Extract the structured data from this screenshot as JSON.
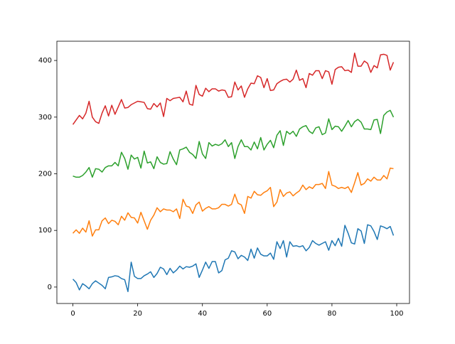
{
  "chart_data": {
    "type": "line",
    "x": [
      0,
      1,
      2,
      3,
      4,
      5,
      6,
      7,
      8,
      9,
      10,
      11,
      12,
      13,
      14,
      15,
      16,
      17,
      18,
      19,
      20,
      21,
      22,
      23,
      24,
      25,
      26,
      27,
      28,
      29,
      30,
      31,
      32,
      33,
      34,
      35,
      36,
      37,
      38,
      39,
      40,
      41,
      42,
      43,
      44,
      45,
      46,
      47,
      48,
      49,
      50,
      51,
      52,
      53,
      54,
      55,
      56,
      57,
      58,
      59,
      60,
      61,
      62,
      63,
      64,
      65,
      66,
      67,
      68,
      69,
      70,
      71,
      72,
      73,
      74,
      75,
      76,
      77,
      78,
      79,
      80,
      81,
      82,
      83,
      84,
      85,
      86,
      87,
      88,
      89,
      90,
      91,
      92,
      93,
      94,
      95,
      96,
      97,
      98,
      99
    ],
    "series": [
      {
        "color": "#1f77b4",
        "values": [
          14,
          8,
          -5,
          6,
          2,
          -3,
          6,
          11,
          7,
          3,
          -3,
          17,
          18,
          20,
          19,
          15,
          13,
          -8,
          44,
          19,
          15,
          15,
          20,
          23,
          27,
          17,
          24,
          35,
          32,
          22,
          33,
          25,
          30,
          37,
          32,
          36,
          35,
          37,
          41,
          17,
          30,
          44,
          33,
          45,
          45,
          25,
          29,
          48,
          51,
          64,
          62,
          50,
          56,
          53,
          47,
          67,
          51,
          69,
          58,
          55,
          55,
          60,
          49,
          80,
          68,
          82,
          53,
          80,
          72,
          73,
          71,
          73,
          64,
          70,
          82,
          77,
          74,
          77,
          80,
          65,
          82,
          73,
          86,
          72,
          109,
          95,
          78,
          76,
          103,
          99,
          77,
          110,
          108,
          98,
          84,
          108,
          106,
          103,
          107,
          91
        ]
      },
      {
        "color": "#ff7f0e",
        "values": [
          95,
          101,
          95,
          104,
          97,
          117,
          90,
          101,
          101,
          117,
          122,
          112,
          118,
          116,
          110,
          125,
          118,
          131,
          123,
          122,
          113,
          132,
          117,
          102,
          118,
          127,
          140,
          133,
          138,
          136,
          136,
          133,
          138,
          121,
          155,
          143,
          141,
          130,
          145,
          150,
          134,
          139,
          142,
          138,
          138,
          140,
          146,
          146,
          143,
          146,
          164,
          148,
          145,
          130,
          160,
          157,
          169,
          163,
          162,
          167,
          170,
          176,
          142,
          150,
          172,
          160,
          166,
          168,
          161,
          166,
          170,
          180,
          172,
          177,
          174,
          181,
          181,
          183,
          174,
          204,
          180,
          178,
          174,
          176,
          174,
          177,
          167,
          184,
          202,
          180,
          183,
          191,
          187,
          194,
          189,
          189,
          197,
          191,
          210,
          209
        ]
      },
      {
        "color": "#2ca02c",
        "values": [
          196,
          194,
          194,
          197,
          203,
          211,
          194,
          209,
          208,
          203,
          211,
          214,
          214,
          220,
          214,
          238,
          227,
          208,
          233,
          226,
          229,
          210,
          240,
          219,
          221,
          209,
          230,
          220,
          217,
          218,
          239,
          226,
          216,
          242,
          244,
          247,
          238,
          234,
          227,
          257,
          235,
          227,
          255,
          249,
          252,
          250,
          253,
          260,
          248,
          255,
          227,
          248,
          260,
          248,
          248,
          242,
          256,
          244,
          264,
          242,
          252,
          259,
          246,
          268,
          276,
          250,
          275,
          270,
          275,
          266,
          279,
          283,
          285,
          275,
          271,
          281,
          283,
          269,
          272,
          297,
          278,
          284,
          283,
          275,
          284,
          294,
          283,
          292,
          296,
          291,
          279,
          279,
          278,
          295,
          296,
          271,
          303,
          309,
          312,
          300
        ]
      },
      {
        "color": "#d62728",
        "values": [
          287,
          295,
          303,
          297,
          307,
          328,
          300,
          292,
          289,
          307,
          320,
          302,
          321,
          305,
          318,
          331,
          316,
          317,
          322,
          325,
          328,
          327,
          326,
          315,
          314,
          324,
          318,
          325,
          301,
          333,
          329,
          333,
          334,
          335,
          327,
          346,
          323,
          321,
          356,
          340,
          337,
          351,
          345,
          350,
          350,
          346,
          348,
          347,
          335,
          336,
          362,
          348,
          355,
          335,
          350,
          360,
          359,
          373,
          370,
          352,
          368,
          347,
          348,
          359,
          363,
          366,
          367,
          362,
          367,
          383,
          365,
          368,
          352,
          377,
          374,
          382,
          382,
          368,
          382,
          380,
          358,
          384,
          388,
          389,
          382,
          383,
          379,
          413,
          390,
          390,
          399,
          395,
          379,
          391,
          387,
          410,
          411,
          409,
          383,
          397
        ]
      }
    ],
    "xlim": [
      -4.95,
      103.95
    ],
    "xticks": [
      0,
      20,
      40,
      60,
      80,
      100
    ],
    "ylim": [
      -29,
      434
    ],
    "yticks": [
      0,
      100,
      200,
      300,
      400
    ]
  }
}
